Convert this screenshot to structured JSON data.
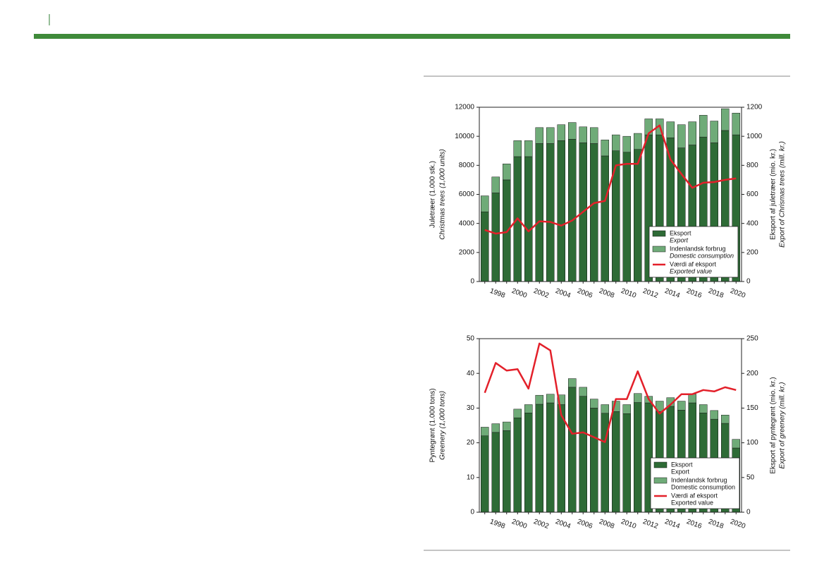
{
  "chart_data": [
    {
      "type": "bar",
      "ylabel": "Juletræer (1.000 stk.)",
      "ylabel_en": "Christmas trees (1,000 units)",
      "y2label": "Eksport af juletræer (mio. kr.)",
      "y2label_en": "Export of Chrismas trees (mill. kr.)",
      "categories": [
        null,
        "1998",
        null,
        "2000",
        null,
        "2002",
        null,
        "2004",
        null,
        "2006",
        null,
        "2008",
        null,
        "2010",
        null,
        "2012",
        null,
        "2014",
        null,
        "2016",
        null,
        "2018",
        null,
        "2020"
      ],
      "series": [
        {
          "name": "Eksport",
          "name_en": "Export",
          "color": "#2e6b36",
          "values": [
            4800,
            6100,
            7000,
            8600,
            8600,
            9500,
            9500,
            9700,
            9800,
            9550,
            9500,
            8650,
            9000,
            8900,
            9100,
            10100,
            10100,
            9900,
            9200,
            9400,
            9950,
            9550,
            10400,
            10100
          ]
        },
        {
          "name": "Indenlandsk forbrug",
          "name_en": "Domestic consumption",
          "color": "#6fab78",
          "values": [
            1100,
            1100,
            1100,
            1100,
            1100,
            1100,
            1100,
            1100,
            1150,
            1100,
            1100,
            1100,
            1100,
            1100,
            1100,
            1100,
            1100,
            1100,
            1600,
            1600,
            1500,
            1500,
            1500,
            1500
          ]
        },
        {
          "name": "Værdi af eksport",
          "name_en": "Exported value",
          "color": "#e3202a",
          "type": "line",
          "axis": "y2",
          "values": [
            355,
            330,
            340,
            435,
            345,
            415,
            410,
            385,
            420,
            480,
            540,
            555,
            800,
            810,
            810,
            1020,
            1075,
            840,
            740,
            645,
            680,
            685,
            700,
            710
          ]
        }
      ],
      "ylim": [
        0,
        12000
      ],
      "yticks": [
        0,
        2000,
        4000,
        6000,
        8000,
        10000,
        12000
      ],
      "y2lim": [
        0,
        1200
      ],
      "y2ticks": [
        0,
        200,
        400,
        600,
        800,
        1000,
        1200
      ],
      "legend": "lower right"
    },
    {
      "type": "bar",
      "ylabel": "Pyntegrønt (1.000 tons)",
      "ylabel_en": "Greenery (1,000 tons)",
      "y2label": "Eksport af pyntegrønt (mio. kr.)",
      "y2label_en": "Export of greenery (mill. kr.)",
      "categories": [
        null,
        "1998",
        null,
        "2000",
        null,
        "2002",
        null,
        "2004",
        null,
        "2006",
        null,
        "2008",
        null,
        "2010",
        null,
        "2012",
        null,
        "2014",
        null,
        "2016",
        null,
        "2018",
        null,
        "2020"
      ],
      "series": [
        {
          "name": "Eksport",
          "name_en": "Export",
          "color": "#2e6b36",
          "values": [
            22,
            23,
            23.5,
            27.2,
            28.6,
            31.1,
            31.5,
            31,
            36,
            33.4,
            30,
            28.5,
            29,
            28.4,
            31.6,
            31.5,
            29,
            30.5,
            29.4,
            31.5,
            28.6,
            26.8,
            25.6,
            18.5
          ]
        },
        {
          "name": "Indenlandsk forbrug",
          "name_en": "Domestic consumption",
          "color": "#6fab78",
          "values": [
            2.5,
            2.5,
            2.5,
            2.5,
            2.4,
            2.6,
            2.5,
            2.8,
            2.5,
            2.6,
            2.6,
            2.5,
            3,
            2.6,
            2.6,
            1.9,
            3,
            2.5,
            2.6,
            2.5,
            2.4,
            2.5,
            2.4,
            2.5
          ]
        },
        {
          "name": "Værdi af eksport",
          "name_en": "Exported value",
          "color": "#e3202a",
          "type": "line",
          "axis": "y2",
          "values": [
            172,
            215,
            204,
            206,
            178,
            243,
            233,
            140,
            113,
            115,
            108,
            101,
            163,
            163,
            203,
            163,
            142,
            155,
            170,
            170,
            176,
            174,
            180,
            176
          ]
        }
      ],
      "ylim": [
        0,
        50
      ],
      "yticks": [
        0,
        10,
        20,
        30,
        40,
        50
      ],
      "y2lim": [
        0,
        250
      ],
      "y2ticks": [
        0,
        50,
        100,
        150,
        200,
        250
      ],
      "legend": "lower right"
    }
  ]
}
